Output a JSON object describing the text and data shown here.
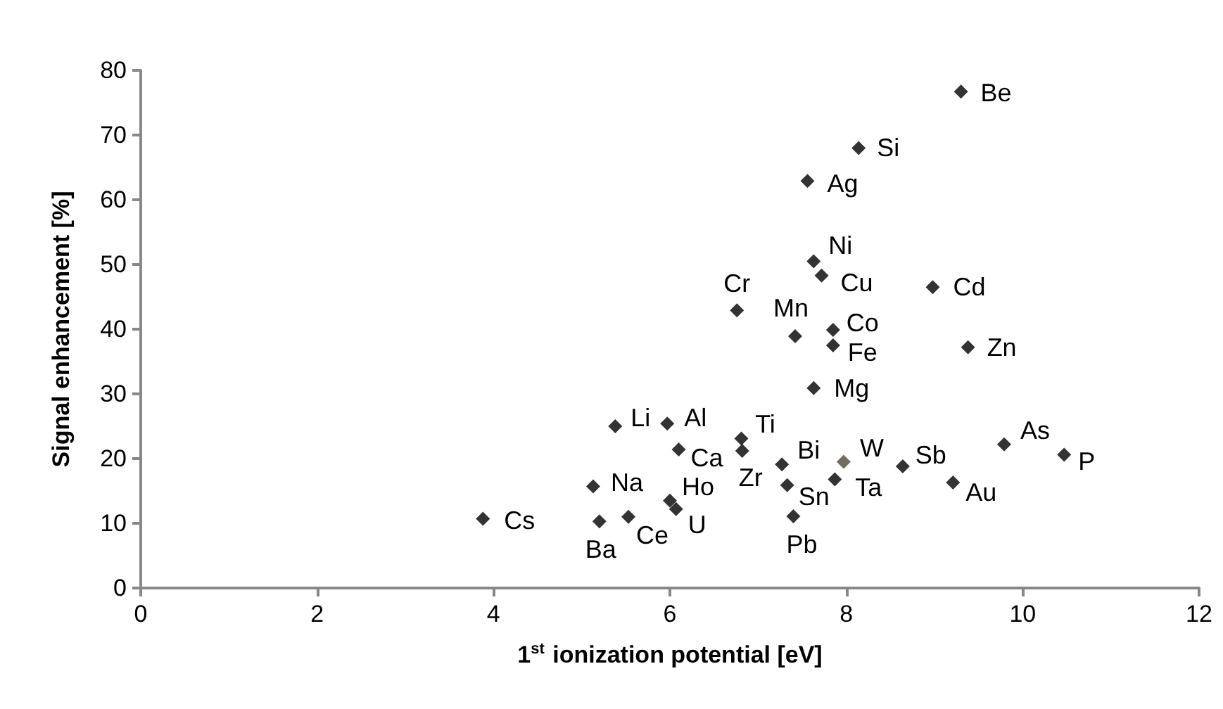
{
  "chart_data": {
    "type": "scatter",
    "xlabel": "1$^{st}$ ionization potential [eV]",
    "ylabel": "Signal enhancement [%]",
    "x": [
      3.88,
      5.2,
      5.53,
      5.13,
      6.0,
      6.07,
      5.38,
      5.97,
      6.1,
      6.81,
      6.82,
      7.27,
      7.33,
      7.4,
      7.87,
      7.97,
      8.64,
      9.21,
      9.79,
      10.47,
      7.63,
      9.3,
      8.14,
      7.56,
      7.63,
      7.72,
      6.76,
      8.98,
      7.42,
      7.85,
      7.85,
      9.38
    ],
    "values": [
      10.7,
      10.3,
      11,
      15.7,
      13.5,
      12.2,
      25,
      25.4,
      21.4,
      23.1,
      21.2,
      19.1,
      15.9,
      11.1,
      16.8,
      19.5,
      18.8,
      16.3,
      22.2,
      20.6,
      30.9,
      76.7,
      68,
      62.9,
      50.5,
      48.3,
      42.9,
      46.5,
      38.9,
      39.9,
      37.5,
      37.2
    ],
    "colors": [
      "#000000",
      "#000000",
      "#000000",
      "#000000",
      "#000000",
      "#000000",
      "#000000",
      "#000000",
      "#000000",
      "#000000",
      "#000000",
      "#000000",
      "#000000",
      "#000000",
      "#000000",
      "#4d4a38",
      "#000000",
      "#000000",
      "#000000",
      "#000000",
      "#000000",
      "#000000",
      "#000000",
      "#000000",
      "#000000",
      "#000000",
      "#000000",
      "#000000",
      "#000000",
      "#000000",
      "#000000",
      "#000000"
    ],
    "annotations": [
      {
        "text": "Cs",
        "x": 3.88,
        "y": 10.7
      },
      {
        "text": "Ba",
        "x": 5.2,
        "y": 10.3
      },
      {
        "text": "Ce",
        "x": 5.53,
        "y": 11
      },
      {
        "text": "Na",
        "x": 5.13,
        "y": 15.7
      },
      {
        "text": "Ho",
        "x": 6.0,
        "y": 13.5
      },
      {
        "text": "U",
        "x": 6.07,
        "y": 12.2
      },
      {
        "text": "Li",
        "x": 5.38,
        "y": 25
      },
      {
        "text": "Al",
        "x": 5.97,
        "y": 25.4
      },
      {
        "text": "Ca",
        "x": 6.1,
        "y": 21.4
      },
      {
        "text": "Ti",
        "x": 6.81,
        "y": 23.1
      },
      {
        "text": "Zr",
        "x": 6.82,
        "y": 21.2
      },
      {
        "text": "Bi",
        "x": 7.27,
        "y": 19.1
      },
      {
        "text": "Sn",
        "x": 7.33,
        "y": 15.9
      },
      {
        "text": "Pb",
        "x": 7.4,
        "y": 11.1
      },
      {
        "text": "Ta",
        "x": 7.87,
        "y": 16.8
      },
      {
        "text": "W",
        "x": 7.97,
        "y": 19.5
      },
      {
        "text": "Sb",
        "x": 8.64,
        "y": 18.8
      },
      {
        "text": "Au",
        "x": 9.21,
        "y": 16.3
      },
      {
        "text": "As",
        "x": 9.79,
        "y": 22.2
      },
      {
        "text": "P",
        "x": 10.47,
        "y": 20.6
      },
      {
        "text": "Mg",
        "x": 7.63,
        "y": 30.9
      },
      {
        "text": "Be",
        "x": 9.3,
        "y": 76.7
      },
      {
        "text": "Si",
        "x": 8.14,
        "y": 68
      },
      {
        "text": "Ag",
        "x": 7.56,
        "y": 62.9
      },
      {
        "text": "Ni",
        "x": 7.63,
        "y": 50.5
      },
      {
        "text": "Cu",
        "x": 7.72,
        "y": 48.3
      },
      {
        "text": "Cr",
        "x": 6.76,
        "y": 42.9
      },
      {
        "text": "Cd",
        "x": 8.98,
        "y": 46.5
      },
      {
        "text": "Mn",
        "x": 7.42,
        "y": 38.9
      },
      {
        "text": "Co",
        "x": 7.85,
        "y": 39.9
      },
      {
        "text": "Fe",
        "x": 7.85,
        "y": 37.5
      },
      {
        "text": "Zn",
        "x": 9.38,
        "y": 37.2
      }
    ],
    "xlim": [
      0,
      12
    ],
    "xticks": [
      0,
      2,
      4,
      6,
      8,
      10,
      12
    ],
    "ylim": [
      0,
      80
    ],
    "yticks": [
      0,
      10,
      20,
      30,
      40,
      50,
      60,
      70,
      80
    ],
    "grid": false,
    "marker": "diamond"
  }
}
